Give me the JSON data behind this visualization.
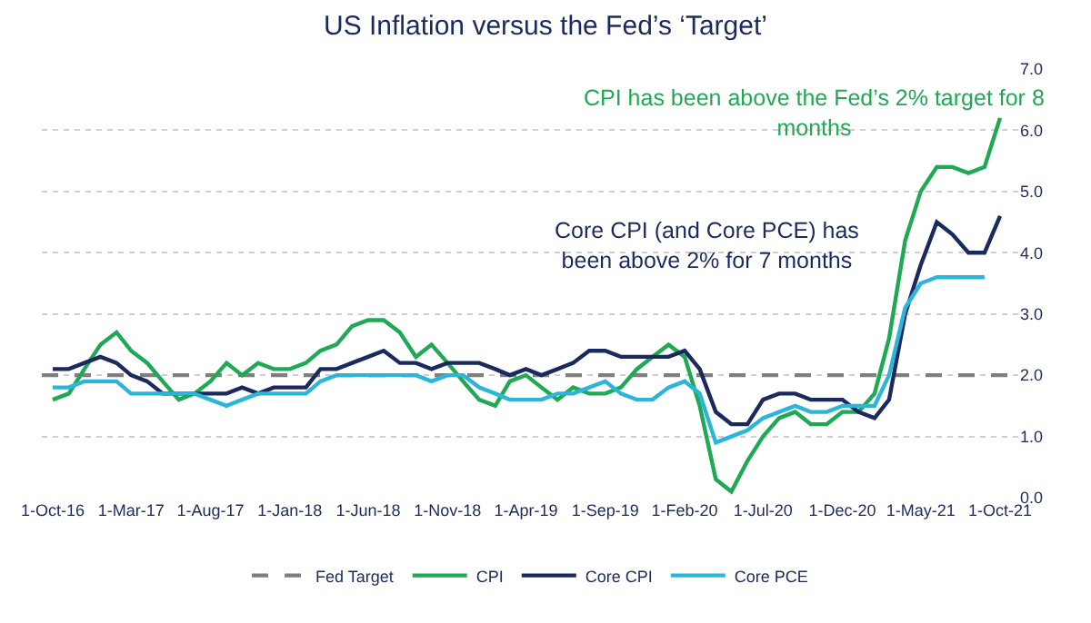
{
  "chart_data": {
    "type": "line",
    "title": "US Inflation versus the Fed’s ‘Target’",
    "x": [
      "2016-10",
      "2016-11",
      "2016-12",
      "2017-01",
      "2017-02",
      "2017-03",
      "2017-04",
      "2017-05",
      "2017-06",
      "2017-07",
      "2017-08",
      "2017-09",
      "2017-10",
      "2017-11",
      "2017-12",
      "2018-01",
      "2018-02",
      "2018-03",
      "2018-04",
      "2018-05",
      "2018-06",
      "2018-07",
      "2018-08",
      "2018-09",
      "2018-10",
      "2018-11",
      "2018-12",
      "2019-01",
      "2019-02",
      "2019-03",
      "2019-04",
      "2019-05",
      "2019-06",
      "2019-07",
      "2019-08",
      "2019-09",
      "2019-10",
      "2019-11",
      "2019-12",
      "2020-01",
      "2020-02",
      "2020-03",
      "2020-04",
      "2020-05",
      "2020-06",
      "2020-07",
      "2020-08",
      "2020-09",
      "2020-10",
      "2020-11",
      "2020-12",
      "2021-01",
      "2021-02",
      "2021-03",
      "2021-04",
      "2021-05",
      "2021-06",
      "2021-07",
      "2021-08",
      "2021-09",
      "2021-10"
    ],
    "series": [
      {
        "name": "CPI",
        "color": "#1fa955",
        "values": [
          1.6,
          1.7,
          2.1,
          2.5,
          2.7,
          2.4,
          2.2,
          1.9,
          1.6,
          1.7,
          1.9,
          2.2,
          2.0,
          2.2,
          2.1,
          2.1,
          2.2,
          2.4,
          2.5,
          2.8,
          2.9,
          2.9,
          2.7,
          2.3,
          2.5,
          2.2,
          1.9,
          1.6,
          1.5,
          1.9,
          2.0,
          1.8,
          1.6,
          1.8,
          1.7,
          1.7,
          1.8,
          2.1,
          2.3,
          2.5,
          2.3,
          1.5,
          0.3,
          0.1,
          0.6,
          1.0,
          1.3,
          1.4,
          1.2,
          1.2,
          1.4,
          1.4,
          1.7,
          2.6,
          4.2,
          5.0,
          5.4,
          5.4,
          5.3,
          5.4,
          6.2
        ]
      },
      {
        "name": "Core CPI",
        "color": "#1b2a5e",
        "values": [
          2.1,
          2.1,
          2.2,
          2.3,
          2.2,
          2.0,
          1.9,
          1.7,
          1.7,
          1.7,
          1.7,
          1.7,
          1.8,
          1.7,
          1.8,
          1.8,
          1.8,
          2.1,
          2.1,
          2.2,
          2.3,
          2.4,
          2.2,
          2.2,
          2.1,
          2.2,
          2.2,
          2.2,
          2.1,
          2.0,
          2.1,
          2.0,
          2.1,
          2.2,
          2.4,
          2.4,
          2.3,
          2.3,
          2.3,
          2.3,
          2.4,
          2.1,
          1.4,
          1.2,
          1.2,
          1.6,
          1.7,
          1.7,
          1.6,
          1.6,
          1.6,
          1.4,
          1.3,
          1.6,
          3.0,
          3.8,
          4.5,
          4.3,
          4.0,
          4.0,
          4.6
        ]
      },
      {
        "name": "Core PCE",
        "color": "#2bb6d9",
        "values": [
          1.8,
          1.8,
          1.9,
          1.9,
          1.9,
          1.7,
          1.7,
          1.7,
          1.7,
          1.7,
          1.6,
          1.5,
          1.6,
          1.7,
          1.7,
          1.7,
          1.7,
          1.9,
          2.0,
          2.0,
          2.0,
          2.0,
          2.0,
          2.0,
          1.9,
          2.0,
          2.0,
          1.8,
          1.7,
          1.6,
          1.6,
          1.6,
          1.7,
          1.7,
          1.8,
          1.9,
          1.7,
          1.6,
          1.6,
          1.8,
          1.9,
          1.7,
          0.9,
          1.0,
          1.1,
          1.3,
          1.4,
          1.5,
          1.4,
          1.4,
          1.5,
          1.5,
          1.5,
          2.0,
          3.1,
          3.5,
          3.6,
          3.6,
          3.6,
          3.6,
          null
        ]
      }
    ],
    "ref_lines": [
      {
        "axis": "y",
        "value": 2.0,
        "label": "Fed Target",
        "color": "#7f7f7f",
        "line_style": "dashed"
      }
    ],
    "annotations": [
      "CPI has been above the Fed’s 2% target for 8\nmonths",
      "Core CPI (and Core PCE) has\nbeen above 2% for 7 months"
    ],
    "xlim": [
      "2016-09-10",
      "2021-11-05"
    ],
    "xticks": [
      {
        "value": "2016-10-01",
        "label": "1-Oct-16"
      },
      {
        "value": "2017-03-01",
        "label": "1-Mar-17"
      },
      {
        "value": "2017-08-01",
        "label": "1-Aug-17"
      },
      {
        "value": "2018-01-01",
        "label": "1-Jan-18"
      },
      {
        "value": "2018-06-01",
        "label": "1-Jun-18"
      },
      {
        "value": "2018-11-01",
        "label": "1-Nov-18"
      },
      {
        "value": "2019-04-01",
        "label": "1-Apr-19"
      },
      {
        "value": "2019-09-01",
        "label": "1-Sep-19"
      },
      {
        "value": "2020-02-01",
        "label": "1-Feb-20"
      },
      {
        "value": "2020-07-01",
        "label": "1-Jul-20"
      },
      {
        "value": "2020-12-01",
        "label": "1-Dec-20"
      },
      {
        "value": "2021-05-01",
        "label": "1-May-21"
      },
      {
        "value": "2021-10-01",
        "label": "1-Oct-21"
      }
    ],
    "ylim": [
      0,
      7.0
    ],
    "yticks": [
      {
        "value": 0,
        "label": "0.0"
      },
      {
        "value": 1,
        "label": "1.0"
      },
      {
        "value": 2,
        "label": "2.0"
      },
      {
        "value": 3,
        "label": "3.0"
      },
      {
        "value": 4,
        "label": "4.0"
      },
      {
        "value": 5,
        "label": "5.0"
      },
      {
        "value": 6,
        "label": "6.0"
      },
      {
        "value": 7,
        "label": "7.0"
      }
    ],
    "grid": "y",
    "legend": "bottom",
    "marker": "none",
    "line_style": "solid"
  }
}
